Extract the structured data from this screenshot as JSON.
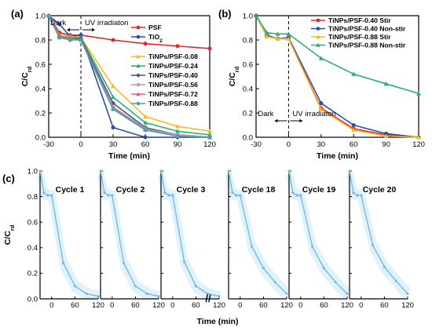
{
  "chart_data": [
    {
      "panel": "(a)",
      "type": "line",
      "xlabel": "Time (min)",
      "ylabel": "C/C",
      "ylabel_sub": "rd",
      "xlim": [
        -30,
        120
      ],
      "ylim": [
        0,
        1.0
      ],
      "xticks": [
        -30,
        0,
        30,
        60,
        90,
        120
      ],
      "yticks": [
        0.0,
        0.2,
        0.4,
        0.6,
        0.8,
        1.0
      ],
      "annotations": {
        "dark": "Dark",
        "uv": "UV irradiaton"
      },
      "legend_position": "top-right",
      "series": [
        {
          "name": "PSF",
          "color": "#e8242a",
          "marker": "circle",
          "x": [
            -30,
            -20,
            -10,
            0,
            30,
            60,
            90,
            120
          ],
          "y": [
            1.0,
            0.86,
            0.84,
            0.84,
            0.8,
            0.77,
            0.75,
            0.73
          ]
        },
        {
          "name": "TiO",
          "name_sub": "2",
          "color": "#2a4fa8",
          "marker": "circle",
          "x": [
            -30,
            -20,
            -10,
            0,
            30,
            60,
            90,
            120
          ],
          "y": [
            1.0,
            0.93,
            0.83,
            0.84,
            0.08,
            0.0,
            0.0,
            0.0
          ]
        },
        {
          "name": "TiNPs/PSF-0.08",
          "color": "#f7b928",
          "marker": "triangle",
          "x": [
            -30,
            -20,
            -10,
            0,
            30,
            60,
            90,
            120
          ],
          "y": [
            1.0,
            0.84,
            0.83,
            0.82,
            0.42,
            0.17,
            0.09,
            0.05
          ]
        },
        {
          "name": "TiNPs/PSF-0.24",
          "color": "#29b16e",
          "marker": "triangle",
          "x": [
            -30,
            -20,
            -10,
            0,
            30,
            60,
            90,
            120
          ],
          "y": [
            1.0,
            0.83,
            0.82,
            0.82,
            0.33,
            0.12,
            0.05,
            0.02
          ]
        },
        {
          "name": "TiNPs/PSF-0.40",
          "color": "#4b4f7a",
          "marker": "diamond",
          "x": [
            -30,
            -20,
            -10,
            0,
            30,
            60,
            90,
            120
          ],
          "y": [
            1.0,
            0.83,
            0.81,
            0.81,
            0.28,
            0.08,
            0.02,
            0.0
          ]
        },
        {
          "name": "TiNPs/PSF-0.56",
          "color": "#a3a3a3",
          "marker": "diamond",
          "x": [
            -30,
            -20,
            -10,
            0,
            30,
            60,
            90,
            120
          ],
          "y": [
            1.0,
            0.82,
            0.81,
            0.8,
            0.25,
            0.07,
            0.02,
            0.0
          ]
        },
        {
          "name": "TiNPs/PSF-0.72",
          "color": "#e8616b",
          "marker": "triangle",
          "x": [
            -30,
            -20,
            -10,
            0,
            30,
            60,
            90,
            120
          ],
          "y": [
            1.0,
            0.83,
            0.81,
            0.8,
            0.24,
            0.06,
            0.01,
            0.0
          ]
        },
        {
          "name": "TiNPs/PSF-0.88",
          "color": "#4f9fb2",
          "marker": "circle",
          "x": [
            -30,
            -20,
            -10,
            0,
            30,
            60,
            90,
            120
          ],
          "y": [
            1.0,
            0.82,
            0.8,
            0.8,
            0.23,
            0.06,
            0.01,
            0.0
          ]
        }
      ]
    },
    {
      "panel": "(b)",
      "type": "line",
      "xlabel": "Time (min)",
      "ylabel": "C/C",
      "ylabel_sub": "rd",
      "xlim": [
        -30,
        120
      ],
      "ylim": [
        0,
        1.0
      ],
      "xticks": [
        -30,
        0,
        30,
        60,
        90,
        120
      ],
      "yticks": [
        0.0,
        0.2,
        0.4,
        0.6,
        0.8,
        1.0
      ],
      "annotations": {
        "dark": "Dark",
        "uv": "UV irradiaton"
      },
      "legend_position": "top-right",
      "series": [
        {
          "name": "TiNPs/PSF-0.40 Stir",
          "color": "#e8242a",
          "marker": "circle",
          "x": [
            -30,
            -20,
            -10,
            0,
            30,
            60,
            90,
            120
          ],
          "y": [
            1.0,
            0.83,
            0.81,
            0.81,
            0.24,
            0.07,
            0.02,
            0.0
          ]
        },
        {
          "name": "TiNPs/PSF-0.40 Non-stir",
          "color": "#2a4fa8",
          "marker": "circle",
          "x": [
            -30,
            -20,
            -10,
            0,
            30,
            60,
            90,
            120
          ],
          "y": [
            1.0,
            0.84,
            0.81,
            0.82,
            0.28,
            0.1,
            0.03,
            0.0
          ]
        },
        {
          "name": "TiNPs/PSF-0.88 Stir",
          "color": "#f7b928",
          "marker": "triangle",
          "x": [
            -30,
            -20,
            -10,
            0,
            30,
            60,
            90,
            120
          ],
          "y": [
            1.0,
            0.83,
            0.81,
            0.81,
            0.23,
            0.06,
            0.01,
            0.0
          ]
        },
        {
          "name": "TiNPs/PSF-0.88 Non-stir",
          "color": "#29b16e",
          "marker": "triangle",
          "x": [
            -30,
            -20,
            -10,
            0,
            30,
            60,
            90,
            120
          ],
          "y": [
            1.0,
            0.86,
            0.85,
            0.85,
            0.65,
            0.52,
            0.44,
            0.36
          ]
        }
      ]
    },
    {
      "panel": "(c)",
      "type": "line",
      "xlabel": "Time (min)",
      "ylabel": "C/C",
      "ylabel_sub": "rd",
      "xlim": [
        -30,
        120
      ],
      "ylim": [
        0,
        1.0
      ],
      "xticks": [
        0,
        60,
        120
      ],
      "yticks": [
        0.0,
        0.2,
        0.4,
        0.6,
        0.8,
        1.0
      ],
      "line_color": "#7fb3e6",
      "band_color": "#dff4fa",
      "break_mark": "//",
      "cycles": [
        {
          "label": "Cycle 1",
          "x": [
            -30,
            -20,
            -10,
            0,
            30,
            60,
            90,
            120
          ],
          "y": [
            1.0,
            0.83,
            0.81,
            0.81,
            0.28,
            0.1,
            0.04,
            0.02
          ]
        },
        {
          "label": "Cycle 2",
          "x": [
            -30,
            -20,
            -10,
            0,
            30,
            60,
            90,
            120
          ],
          "y": [
            1.0,
            0.83,
            0.81,
            0.81,
            0.28,
            0.1,
            0.04,
            0.02
          ]
        },
        {
          "label": "Cycle 3",
          "x": [
            -30,
            -20,
            -10,
            0,
            30,
            60,
            90,
            120
          ],
          "y": [
            1.0,
            0.83,
            0.81,
            0.81,
            0.29,
            0.1,
            0.04,
            0.02
          ]
        },
        {
          "label": "Cycle 18",
          "x": [
            -30,
            -20,
            -10,
            0,
            30,
            60,
            90,
            120
          ],
          "y": [
            1.0,
            0.83,
            0.81,
            0.81,
            0.41,
            0.24,
            0.13,
            0.04
          ]
        },
        {
          "label": "Cycle 19",
          "x": [
            -30,
            -20,
            -10,
            0,
            30,
            60,
            90,
            120
          ],
          "y": [
            1.0,
            0.83,
            0.81,
            0.81,
            0.41,
            0.24,
            0.13,
            0.04
          ]
        },
        {
          "label": "Cycle 20",
          "x": [
            -30,
            -20,
            -10,
            0,
            30,
            60,
            90,
            120
          ],
          "y": [
            1.0,
            0.83,
            0.81,
            0.81,
            0.42,
            0.25,
            0.14,
            0.04
          ]
        }
      ]
    }
  ]
}
